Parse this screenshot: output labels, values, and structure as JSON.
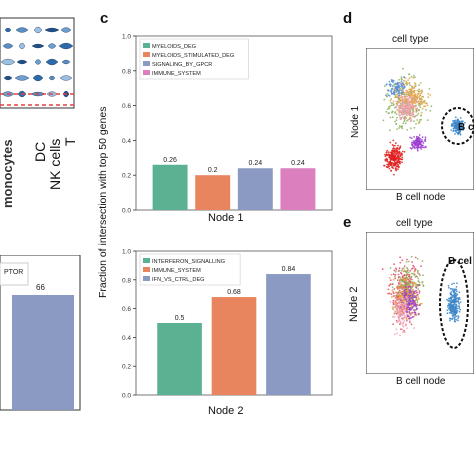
{
  "colors": {
    "teal": "#5ab292",
    "salmon": "#e8845e",
    "slate": "#8b9ac2",
    "pink": "#dc7fbf",
    "dot_blue": "#3f7db8",
    "dashed_red": "#e04040",
    "bcell_blue": "#3a86c8"
  },
  "panels": {
    "c_letter": "c",
    "d_letter": "d",
    "e_letter": "e",
    "left_ticks": [
      "DC",
      "NK cells",
      "T"
    ],
    "left_clipped": "monocytes",
    "left_bottom_legend_fragment": "PTOR",
    "left_bottom_value": "66",
    "shared_ylabel": "Fraction of intersection with top 50 genes",
    "d_title": "cell type",
    "d_ylabel": "Node 1",
    "d_xlabel": "B cell node",
    "d_annotation": "B c",
    "e_title": "cell type",
    "e_ylabel": "Node 2",
    "e_xlabel": "B cell node",
    "e_annotation": "B cel"
  },
  "chart_data": [
    {
      "type": "bar",
      "xlabel": "Node 1",
      "ylim": [
        0,
        1.0
      ],
      "yticks": [
        "0.0",
        "0.2",
        "0.4",
        "0.6",
        "0.8",
        "1.0"
      ],
      "legend_position": "top-left",
      "series": [
        {
          "name": "MYELOIDS_DEG",
          "value": 0.26,
          "label": "0.26",
          "color": "#5ab292"
        },
        {
          "name": "MYELOIDS_STIMULATED_DEG",
          "value": 0.2,
          "label": "0.2",
          "color": "#e8845e"
        },
        {
          "name": "SIGNALING_BY_GPCR",
          "value": 0.24,
          "label": "0.24",
          "color": "#8b9ac2"
        },
        {
          "name": "IMMUNE_SYSTEM",
          "value": 0.24,
          "label": "0.24",
          "color": "#dc7fbf"
        }
      ]
    },
    {
      "type": "bar",
      "xlabel": "Node 2",
      "ylim": [
        0,
        1.0
      ],
      "yticks": [
        "0.0",
        "0.2",
        "0.4",
        "0.6",
        "0.8",
        "1.0"
      ],
      "legend_position": "top-left",
      "series": [
        {
          "name": "INTERFERON_SIGNALLING",
          "value": 0.5,
          "label": "0.5",
          "color": "#5ab292"
        },
        {
          "name": "IMMUNE_SYSTEM",
          "value": 0.68,
          "label": "0.68",
          "color": "#e8845e"
        },
        {
          "name": "IFN_VS_CTRL_DEG",
          "value": 0.84,
          "label": "0.84",
          "color": "#8b9ac2"
        }
      ]
    }
  ]
}
